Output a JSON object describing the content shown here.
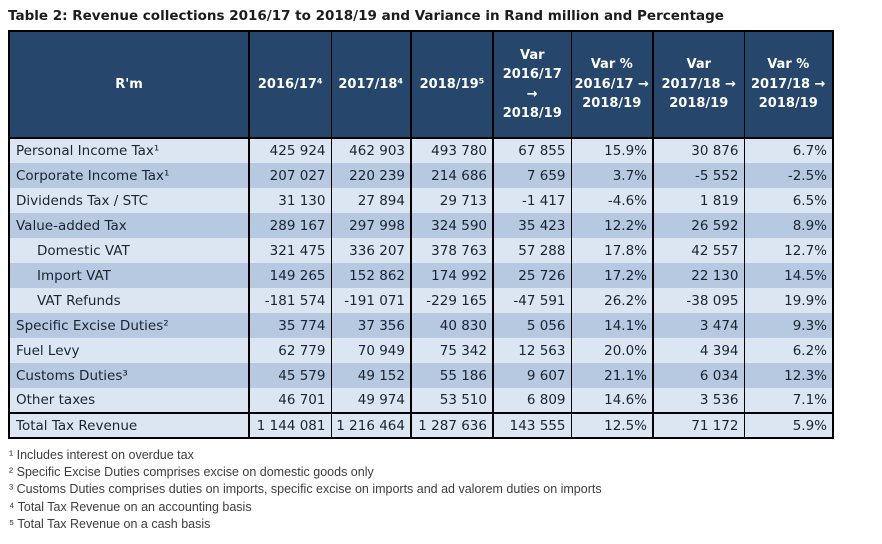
{
  "title": "Table 2: Revenue collections 2016/17 to 2018/19 and Variance in Rand million and Percentage",
  "colors": {
    "header-bg": "#27466b",
    "header-text": "#ffffff",
    "band-light": "#dce6f2",
    "band-dark": "#b6c9e1",
    "grid": "#000000",
    "text": "#1b2430",
    "title": "#1c1c1c",
    "foot": "#3d3d3d",
    "page-bg": "#ffffff"
  },
  "table": {
    "columns": [
      {
        "label": "R'm"
      },
      {
        "label": "2016/17⁴"
      },
      {
        "label": "2017/18⁴"
      },
      {
        "label": "2018/19⁵"
      },
      {
        "label": "Var\n2016/17\n→\n2018/19"
      },
      {
        "label": "Var %\n2016/17 →\n2018/19"
      },
      {
        "label": "Var\n2017/18 →\n2018/19"
      },
      {
        "label": "Var %\n2017/18 →\n2018/19"
      }
    ],
    "rows": [
      {
        "label": "Personal Income Tax¹",
        "indent": false,
        "values": [
          "425 924",
          "462 903",
          "493 780",
          "67 855",
          "15.9%",
          "30 876",
          "6.7%"
        ]
      },
      {
        "label": "Corporate Income Tax¹",
        "indent": false,
        "values": [
          "207 027",
          "220 239",
          "214 686",
          "7 659",
          "3.7%",
          "-5 552",
          "-2.5%"
        ]
      },
      {
        "label": "Dividends Tax / STC",
        "indent": false,
        "values": [
          "31 130",
          "27 894",
          "29 713",
          "-1 417",
          "-4.6%",
          "1 819",
          "6.5%"
        ]
      },
      {
        "label": "Value-added Tax",
        "indent": false,
        "values": [
          "289 167",
          "297 998",
          "324 590",
          "35 423",
          "12.2%",
          "26 592",
          "8.9%"
        ]
      },
      {
        "label": "Domestic VAT",
        "indent": true,
        "values": [
          "321 475",
          "336 207",
          "378 763",
          "57 288",
          "17.8%",
          "42 557",
          "12.7%"
        ]
      },
      {
        "label": "Import VAT",
        "indent": true,
        "values": [
          "149 265",
          "152 862",
          "174 992",
          "25 726",
          "17.2%",
          "22 130",
          "14.5%"
        ]
      },
      {
        "label": "VAT Refunds",
        "indent": true,
        "values": [
          "-181 574",
          "-191 071",
          "-229 165",
          "-47 591",
          "26.2%",
          "-38 095",
          "19.9%"
        ]
      },
      {
        "label": "Specific Excise Duties²",
        "indent": false,
        "values": [
          "35 774",
          "37 356",
          "40 830",
          "5 056",
          "14.1%",
          "3 474",
          "9.3%"
        ]
      },
      {
        "label": "Fuel Levy",
        "indent": false,
        "values": [
          "62 779",
          "70 949",
          "75 342",
          "12 563",
          "20.0%",
          "4 394",
          "6.2%"
        ]
      },
      {
        "label": "Customs Duties³",
        "indent": false,
        "values": [
          "45 579",
          "49 152",
          "55 186",
          "9 607",
          "21.1%",
          "6 034",
          "12.3%"
        ]
      },
      {
        "label": "Other taxes",
        "indent": false,
        "values": [
          "46 701",
          "49 974",
          "53 510",
          "6 809",
          "14.6%",
          "3 536",
          "7.1%"
        ]
      }
    ],
    "total_row": {
      "label": "Total Tax Revenue",
      "indent": false,
      "values": [
        "1 144 081",
        "1 216 464",
        "1 287 636",
        "143 555",
        "12.5%",
        "71 172",
        "5.9%"
      ]
    }
  },
  "footnotes": [
    "¹ Includes interest on overdue tax",
    "² Specific Excise Duties comprises excise on domestic goods only",
    "³ Customs Duties comprises duties on imports, specific excise on imports and ad valorem duties on imports",
    "⁴ Total Tax Revenue on an accounting basis",
    "⁵ Total Tax Revenue on a cash basis"
  ]
}
